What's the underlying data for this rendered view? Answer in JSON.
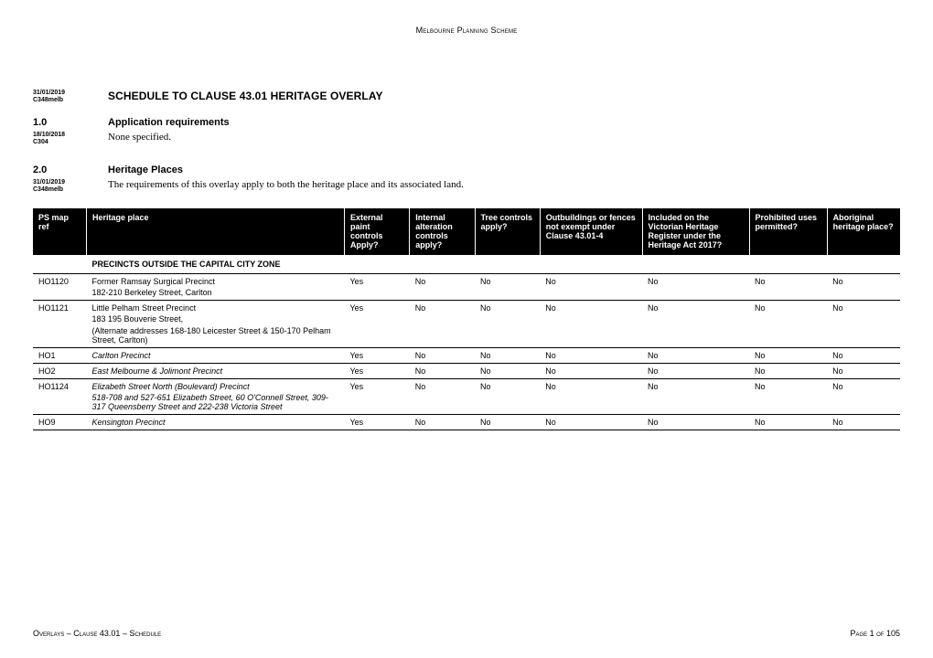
{
  "header": {
    "scheme_title": "Melbourne Planning Scheme"
  },
  "title_block": {
    "date": "31/01/2019",
    "amendment": "C348melb",
    "title": "SCHEDULE TO CLAUSE 43.01 HERITAGE OVERLAY"
  },
  "section1": {
    "num": "1.0",
    "label": "Application requirements",
    "date": "18/10/2018",
    "amendment": "C304",
    "body": "None specified."
  },
  "section2": {
    "num": "2.0",
    "label": "Heritage Places",
    "date": "31/01/2019",
    "amendment": "C348melb",
    "body": "The requirements of this overlay apply to both the heritage place and its associated land."
  },
  "table": {
    "columns": {
      "ps": "PS map ref",
      "place": "Heritage place",
      "ext": "External paint controls Apply?",
      "int": "Internal alteration controls apply?",
      "tree": "Tree controls apply?",
      "out": "Outbuildings or fences not exempt under Clause 43.01-4",
      "vhr": "Included on the Victorian Heritage Register under the Heritage Act 2017?",
      "proh": "Prohibited uses permitted?",
      "abor": "Aboriginal heritage place?"
    },
    "section_header": "PRECINCTS OUTSIDE THE CAPITAL CITY ZONE",
    "rows": [
      {
        "ps": "HO1120",
        "primary": "Former Ramsay Surgical Precinct",
        "addr": "182-210 Berkeley Street, Carlton",
        "note": "",
        "italic": false,
        "ext": "Yes",
        "int": "No",
        "tree": "No",
        "out": "No",
        "vhr": "No",
        "proh": "No",
        "abor": "No"
      },
      {
        "ps": "HO1121",
        "primary": "Little Pelham Street Precinct",
        "addr": "183  195 Bouverie Street,",
        "note": "(Alternate addresses 168-180 Leicester Street & 150-170 Pelham Street, Carlton)",
        "italic": false,
        "ext": "Yes",
        "int": "No",
        "tree": "No",
        "out": "No",
        "vhr": "No",
        "proh": "No",
        "abor": "No"
      },
      {
        "ps": "HO1",
        "primary": "Carlton Precinct",
        "addr": "",
        "note": "",
        "italic": true,
        "ext": "Yes",
        "int": "No",
        "tree": "No",
        "out": "No",
        "vhr": "No",
        "proh": "No",
        "abor": "No"
      },
      {
        "ps": "HO2",
        "primary": "East Melbourne & Jolimont Precinct",
        "addr": "",
        "note": "",
        "italic": true,
        "ext": "Yes",
        "int": "No",
        "tree": "No",
        "out": "No",
        "vhr": "No",
        "proh": "No",
        "abor": "No"
      },
      {
        "ps": "HO1124",
        "primary": "Elizabeth Street North (Boulevard) Precinct",
        "addr": "518-708 and 527-651 Elizabeth Street, 60 O'Connell Street, 309-317 Queensberry Street and 222-238 Victoria Street",
        "note": "",
        "italic": true,
        "ext": "Yes",
        "int": "No",
        "tree": "No",
        "out": "No",
        "vhr": "No",
        "proh": "No",
        "abor": "No"
      },
      {
        "ps": "HO9",
        "primary": "Kensington Precinct",
        "addr": "",
        "note": "",
        "italic": true,
        "ext": "Yes",
        "int": "No",
        "tree": "No",
        "out": "No",
        "vhr": "No",
        "proh": "No",
        "abor": "No"
      }
    ]
  },
  "footer": {
    "left": "Overlays – Clause 43.01 – Schedule",
    "right": "Page 1 of 105"
  }
}
